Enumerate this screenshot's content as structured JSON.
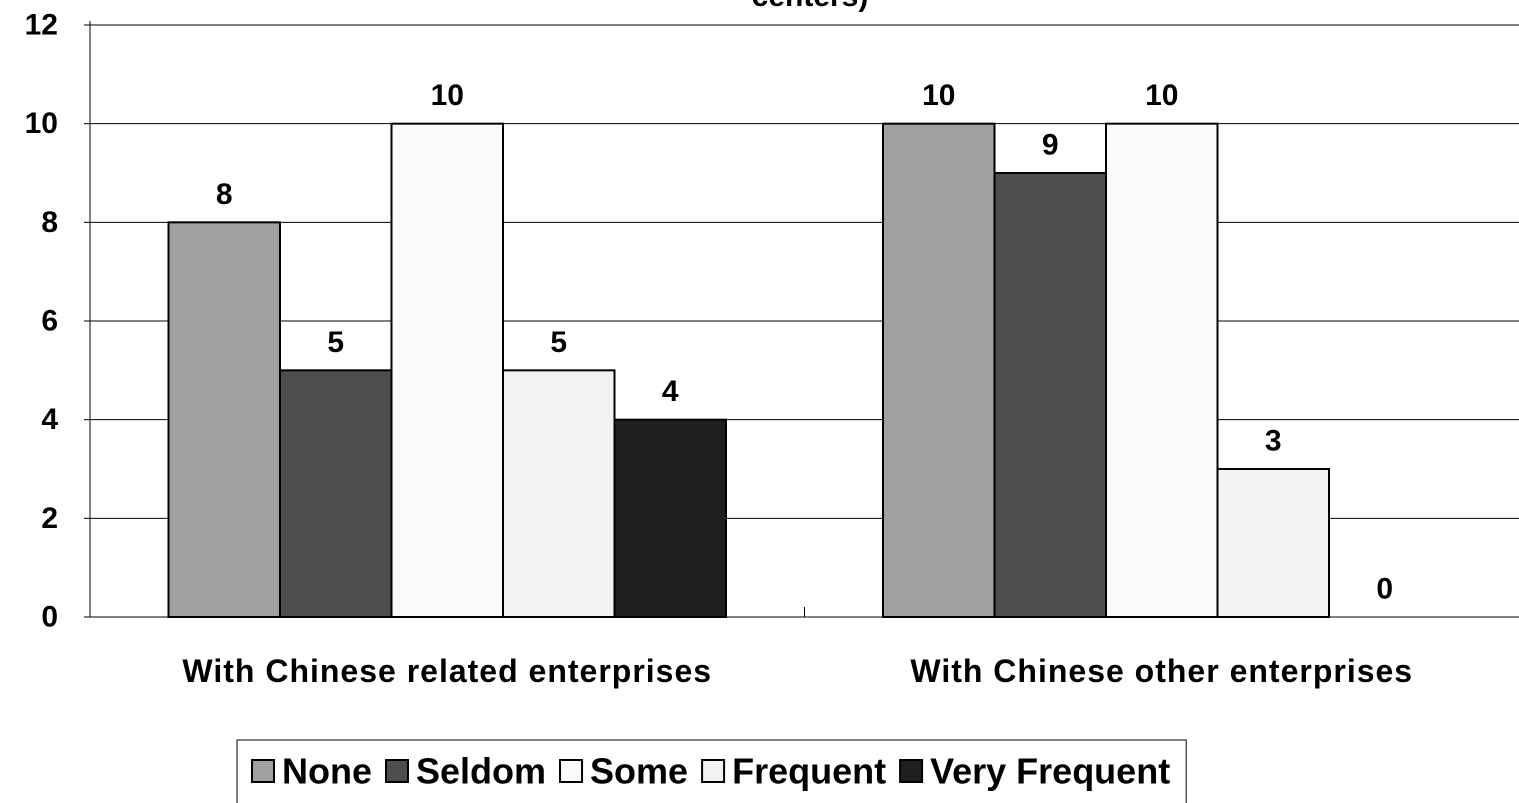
{
  "chart_data": {
    "type": "bar",
    "title": "centers)",
    "xlabel": "",
    "ylabel": "",
    "ylim": [
      0,
      12
    ],
    "yticks": [
      0,
      2,
      4,
      6,
      8,
      10,
      12
    ],
    "grid": true,
    "legend_position": "bottom",
    "categories": [
      "With Chinese related enterprises",
      "With Chinese other enterprises"
    ],
    "series": [
      {
        "name": "None",
        "values": [
          8,
          10
        ],
        "color": "#a0a0a0"
      },
      {
        "name": "Seldom",
        "values": [
          5,
          9
        ],
        "color": "#4d4d4d"
      },
      {
        "name": "Some",
        "values": [
          10,
          10
        ],
        "color": "#fbfbfb"
      },
      {
        "name": "Frequent",
        "values": [
          5,
          3
        ],
        "color": "#f2f2f2"
      },
      {
        "name": "Very Frequent",
        "values": [
          4,
          0
        ],
        "color": "#1f1f1f"
      }
    ]
  }
}
